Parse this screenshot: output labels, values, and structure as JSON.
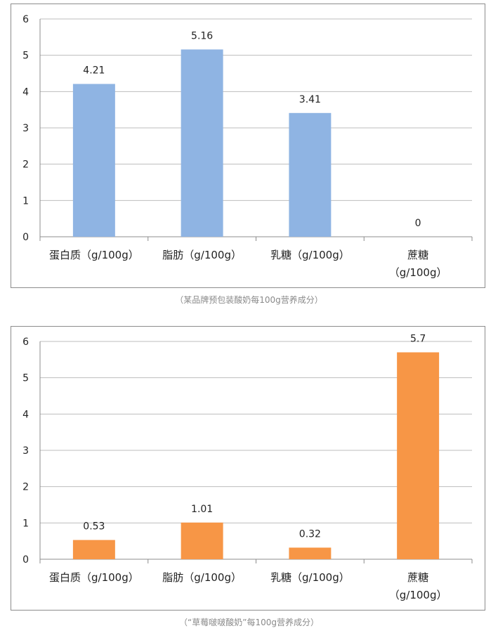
{
  "chart_data": [
    {
      "type": "bar",
      "categories": [
        "蛋白质（g/100g）",
        "脂肪（g/100g）",
        "乳糖（g/100g）",
        "蔗糖（g/100g）"
      ],
      "category_lines": [
        [
          "蛋白质（g/100g）"
        ],
        [
          "脂肪（g/100g）"
        ],
        [
          "乳糖（g/100g）"
        ],
        [
          "蔗糖",
          "（g/100g）"
        ]
      ],
      "values": [
        4.21,
        5.16,
        3.41,
        0
      ],
      "value_labels": [
        "4.21",
        "5.16",
        "3.41",
        "0"
      ],
      "y_ticks": [
        "0",
        "1",
        "2",
        "3",
        "4",
        "5",
        "6"
      ],
      "ylim": [
        0,
        6
      ],
      "grid": true,
      "color": "#8fb4e3",
      "caption": "（某品牌预包装酸奶每100g营养成分）"
    },
    {
      "type": "bar",
      "categories": [
        "蛋白质（g/100g）",
        "脂肪（g/100g）",
        "乳糖（g/100g）",
        "蔗糖（g/100g）"
      ],
      "category_lines": [
        [
          "蛋白质（g/100g）"
        ],
        [
          "脂肪（g/100g）"
        ],
        [
          "乳糖（g/100g）"
        ],
        [
          "蔗糖",
          "（g/100g）"
        ]
      ],
      "values": [
        0.53,
        1.01,
        0.32,
        5.7
      ],
      "value_labels": [
        "0.53",
        "1.01",
        "0.32",
        "5.7"
      ],
      "y_ticks": [
        "0",
        "1",
        "2",
        "3",
        "4",
        "5",
        "6"
      ],
      "ylim": [
        0,
        6
      ],
      "grid": true,
      "color": "#f79646",
      "caption": "（“草莓啵啵酸奶”每100g营养成分）"
    }
  ]
}
